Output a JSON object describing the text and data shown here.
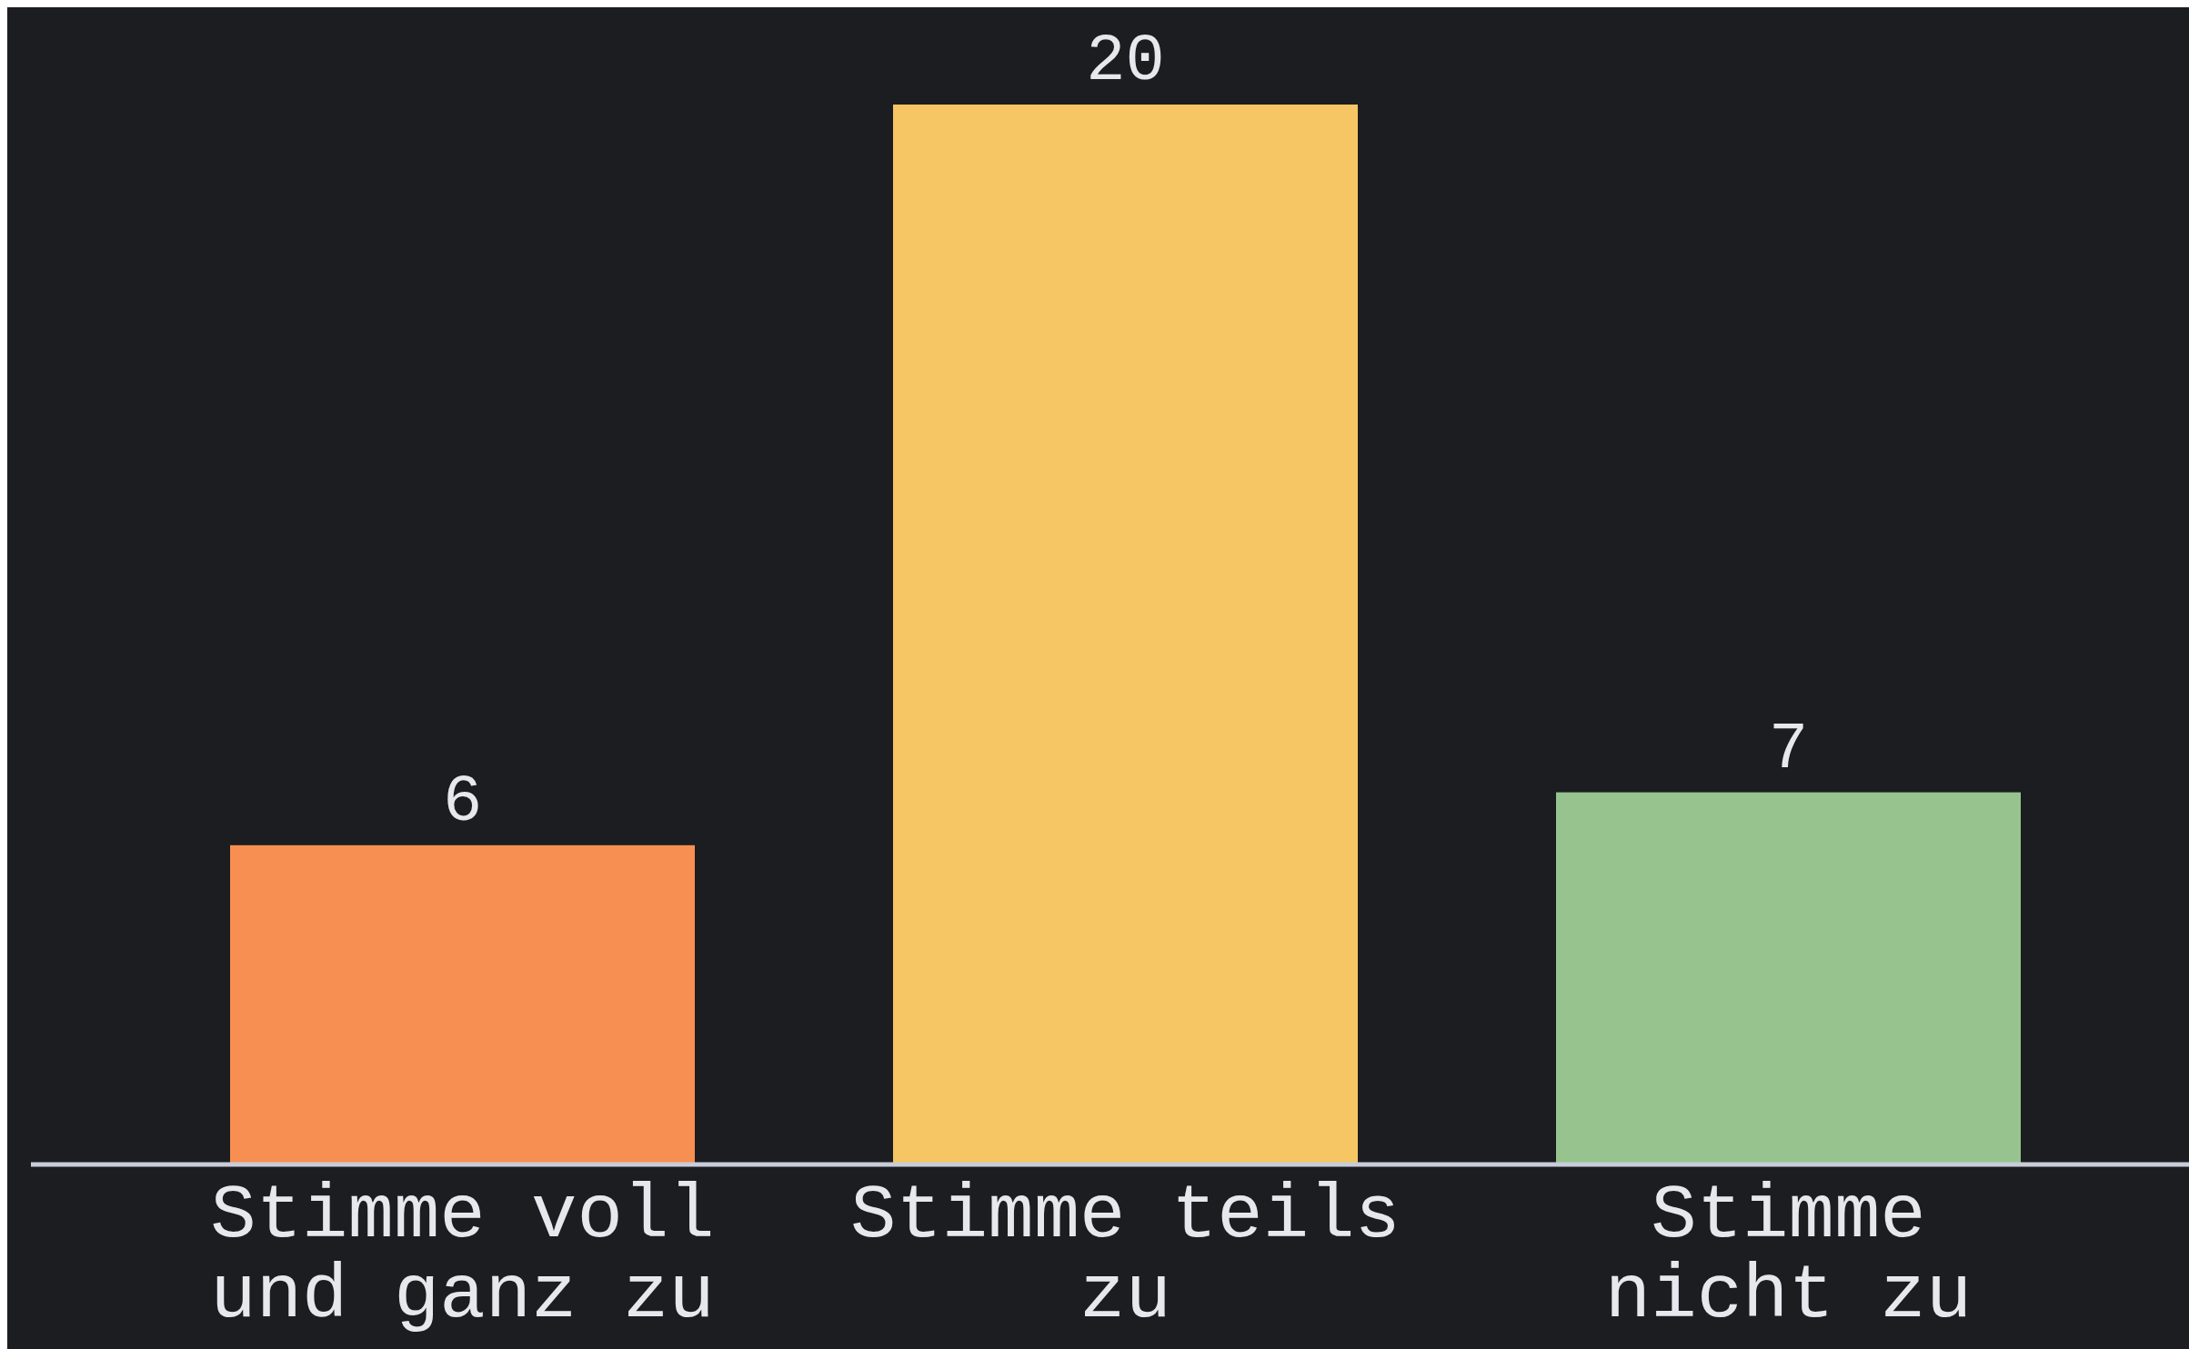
{
  "chart_data": {
    "type": "bar",
    "categories": [
      "Stimme voll\nund ganz zu",
      "Stimme teils\nzu",
      "Stimme\nnicht zu"
    ],
    "values": [
      6,
      20,
      7
    ],
    "colors": [
      "#f78f52",
      "#f6c664",
      "#97c48e"
    ],
    "data_labels": true
  }
}
